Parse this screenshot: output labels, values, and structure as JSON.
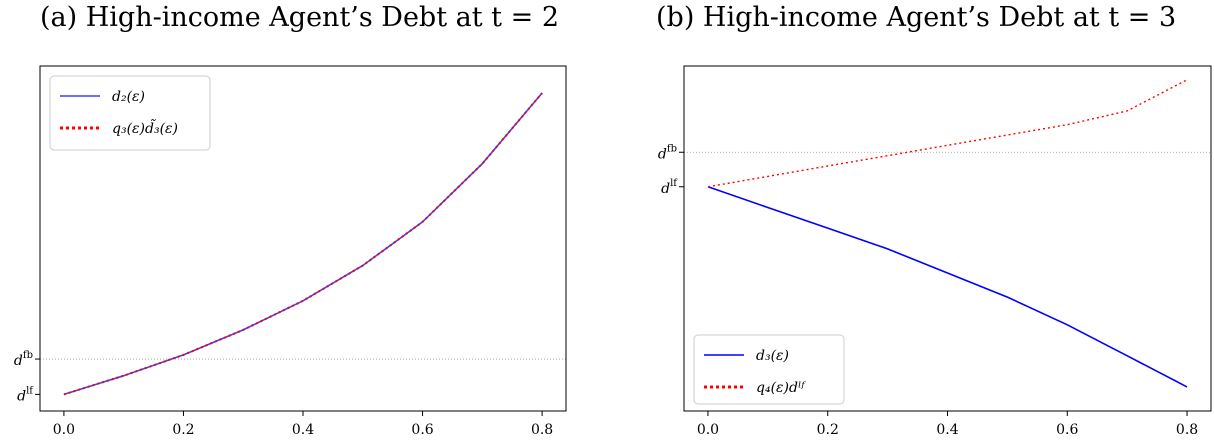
{
  "chart_data": [
    {
      "type": "line",
      "title": "(a) High-income Agent’s Debt at t = 2",
      "xlabel": "",
      "ylabel": "",
      "xlim": [
        -0.04,
        0.84
      ],
      "ylim": [
        0.92,
        2.58
      ],
      "x_ticks": [
        0.0,
        0.2,
        0.4,
        0.6,
        0.8
      ],
      "x_tick_labels": [
        "0.0",
        "0.2",
        "0.4",
        "0.6",
        "0.8"
      ],
      "y_ref_ticks": [
        {
          "label_base": "d",
          "label_sup": "fb",
          "value": 1.17
        },
        {
          "label_base": "d",
          "label_sup": "lf",
          "value": 1.0
        }
      ],
      "legend": "top-left",
      "grid": false,
      "series": [
        {
          "name": "d₂(ε)",
          "color": "#3344ff",
          "style": "solid",
          "x": [
            0.0,
            0.1,
            0.2,
            0.3,
            0.4,
            0.5,
            0.6,
            0.7,
            0.8
          ],
          "y": [
            1.0,
            1.09,
            1.19,
            1.31,
            1.45,
            1.62,
            1.83,
            2.11,
            2.45
          ]
        },
        {
          "name": "q₃(ε)d̃₃(ε)",
          "color": "#ff0000",
          "style": "dotted",
          "x": [
            0.0,
            0.1,
            0.2,
            0.3,
            0.4,
            0.5,
            0.6,
            0.7,
            0.8
          ],
          "y": [
            1.0,
            1.09,
            1.19,
            1.31,
            1.45,
            1.62,
            1.83,
            2.11,
            2.45
          ]
        }
      ]
    },
    {
      "type": "line",
      "title": "(b) High-income Agent’s Debt at t = 3",
      "xlabel": "",
      "ylabel": "",
      "xlim": [
        -0.04,
        0.84
      ],
      "ylim": [
        0.35,
        1.35
      ],
      "x_ticks": [
        0.0,
        0.2,
        0.4,
        0.6,
        0.8
      ],
      "x_tick_labels": [
        "0.0",
        "0.2",
        "0.4",
        "0.6",
        "0.8"
      ],
      "y_ref_ticks": [
        {
          "label_base": "d",
          "label_sup": "fb",
          "value": 1.1
        },
        {
          "label_base": "d",
          "label_sup": "lf",
          "value": 1.0
        }
      ],
      "legend": "bottom-left",
      "grid": false,
      "series": [
        {
          "name": "d₃(ε)",
          "color": "#0000ff",
          "style": "solid",
          "x": [
            0.0,
            0.1,
            0.2,
            0.3,
            0.4,
            0.5,
            0.6,
            0.7,
            0.8
          ],
          "y": [
            1.0,
            0.94,
            0.88,
            0.82,
            0.75,
            0.68,
            0.6,
            0.51,
            0.42
          ]
        },
        {
          "name": "q₄(ε)dˡᶠ",
          "color": "#ff0000",
          "style": "dotted",
          "x": [
            0.0,
            0.1,
            0.2,
            0.3,
            0.4,
            0.5,
            0.6,
            0.7,
            0.8
          ],
          "y": [
            1.0,
            1.03,
            1.06,
            1.09,
            1.12,
            1.15,
            1.18,
            1.22,
            1.31
          ]
        }
      ]
    }
  ]
}
